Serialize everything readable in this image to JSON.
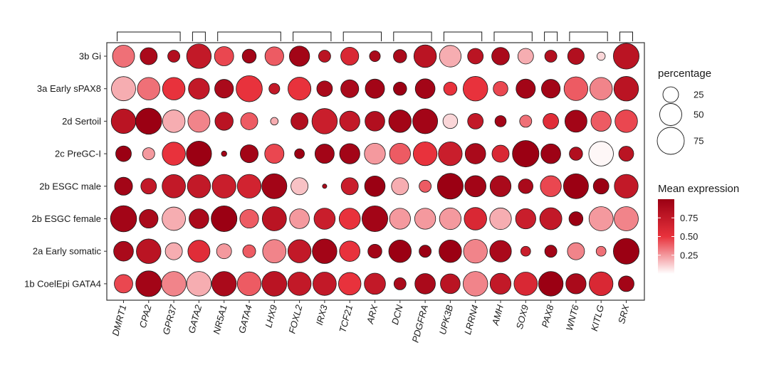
{
  "chart_data": {
    "type": "dotplot",
    "title": "",
    "xlabel": "",
    "ylabel": "",
    "genes": [
      "DMRT1",
      "CPA2",
      "GPR37",
      "GATA2",
      "NR5A1",
      "GATA4",
      "LHX9",
      "FOXL2",
      "IRX3",
      "TCF21",
      "ARX",
      "DCN",
      "PDGFRA",
      "UPK3B",
      "LRRN4",
      "AMH",
      "SOX9",
      "PAX8",
      "WNT6",
      "KITLG",
      "SRX"
    ],
    "groups": [
      "3b Gi",
      "3a Early sPAX8",
      "2d Sertoil",
      "2c PreGC-I",
      "2b ESGC male",
      "2b ESGC female",
      "2a Early somatic",
      "1b CoelEpi GATA4"
    ],
    "gene_clusters": [
      {
        "start": "DMRT1",
        "end": "GPR37"
      },
      {
        "start": "GATA2",
        "end": "GATA2"
      },
      {
        "start": "NR5A1",
        "end": "LHX9"
      },
      {
        "start": "FOXL2",
        "end": "IRX3"
      },
      {
        "start": "TCF21",
        "end": "ARX"
      },
      {
        "start": "DCN",
        "end": "PDGFRA"
      },
      {
        "start": "UPK3B",
        "end": "LRRN4"
      },
      {
        "start": "AMH",
        "end": "SOX9"
      },
      {
        "start": "PAX8",
        "end": "PAX8"
      },
      {
        "start": "WNT6",
        "end": "KITLG"
      },
      {
        "start": "SRX",
        "end": "SRX"
      }
    ],
    "percentage": [
      [
        50,
        30,
        15,
        62,
        38,
        20,
        36,
        42,
        15,
        33,
        12,
        18,
        52,
        48,
        25,
        32,
        25,
        15,
        28,
        7,
        68
      ],
      [
        60,
        52,
        52,
        45,
        36,
        70,
        12,
        54,
        25,
        33,
        38,
        18,
        40,
        18,
        62,
        22,
        38,
        36,
        58,
        52,
        62
      ],
      [
        62,
        70,
        52,
        50,
        34,
        30,
        6,
        30,
        66,
        42,
        40,
        52,
        64,
        22,
        25,
        13,
        15,
        25,
        50,
        42,
        52
      ],
      [
        25,
        15,
        55,
        65,
        3,
        33,
        38,
        10,
        38,
        42,
        45,
        45,
        58,
        58,
        43,
        30,
        72,
        40,
        18,
        62,
        23
      ],
      [
        33,
        25,
        56,
        55,
        58,
        58,
        64,
        30,
        2,
        30,
        43,
        30,
        15,
        68,
        46,
        45,
        22,
        45,
        64,
        25,
        58
      ],
      [
        70,
        36,
        56,
        40,
        68,
        36,
        60,
        40,
        46,
        46,
        68,
        45,
        45,
        48,
        52,
        48,
        42,
        50,
        20,
        60,
        60
      ],
      [
        40,
        62,
        30,
        50,
        23,
        17,
        56,
        55,
        62,
        43,
        20,
        52,
        15,
        52,
        58,
        48,
        10,
        15,
        30,
        10,
        68
      ],
      [
        35,
        68,
        62,
        62,
        62,
        58,
        63,
        56,
        56,
        52,
        46,
        15,
        43,
        40,
        62,
        45,
        56,
        62,
        42,
        58,
        25
      ]
    ],
    "mean_expression": [
      [
        0.35,
        0.9,
        0.85,
        0.75,
        0.45,
        0.95,
        0.4,
        0.95,
        0.8,
        0.6,
        0.9,
        0.9,
        0.8,
        0.2,
        0.8,
        0.9,
        0.2,
        0.85,
        0.85,
        0.1,
        0.8
      ],
      [
        0.2,
        0.35,
        0.5,
        0.75,
        0.9,
        0.5,
        0.75,
        0.5,
        0.9,
        0.9,
        0.95,
        1.0,
        0.95,
        0.5,
        0.5,
        0.45,
        0.95,
        0.95,
        0.4,
        0.3,
        0.8
      ],
      [
        0.8,
        1.0,
        0.2,
        0.3,
        0.8,
        0.4,
        0.2,
        0.85,
        0.7,
        0.75,
        0.85,
        0.95,
        0.95,
        0.1,
        0.75,
        0.95,
        0.35,
        0.55,
        0.95,
        0.4,
        0.45
      ],
      [
        1.0,
        0.25,
        0.5,
        1.0,
        0.95,
        0.95,
        0.45,
        1.0,
        0.95,
        0.95,
        0.25,
        0.4,
        0.5,
        0.7,
        0.9,
        0.6,
        1.0,
        0.98,
        0.85,
        0.02,
        0.8
      ],
      [
        0.95,
        0.75,
        0.75,
        0.75,
        0.7,
        0.65,
        0.95,
        0.15,
        0.9,
        0.7,
        1.0,
        0.2,
        0.4,
        1.0,
        0.95,
        0.9,
        0.9,
        0.45,
        1.0,
        1.0,
        0.75
      ],
      [
        0.95,
        0.9,
        0.2,
        0.9,
        1.0,
        0.4,
        0.8,
        0.25,
        0.7,
        0.5,
        0.95,
        0.25,
        0.25,
        0.25,
        0.6,
        0.2,
        0.7,
        0.75,
        1.0,
        0.25,
        0.3
      ],
      [
        0.9,
        0.8,
        0.2,
        0.55,
        0.25,
        0.4,
        0.3,
        0.75,
        0.95,
        0.5,
        0.95,
        1.0,
        1.0,
        1.0,
        0.3,
        0.9,
        0.7,
        0.95,
        0.3,
        0.35,
        1.0
      ],
      [
        0.45,
        0.95,
        0.3,
        0.2,
        0.9,
        0.4,
        0.8,
        0.75,
        0.75,
        0.5,
        0.75,
        0.9,
        0.9,
        0.8,
        0.3,
        0.75,
        0.6,
        1.0,
        0.9,
        0.6,
        0.95
      ]
    ],
    "legend_size": {
      "title": "percentage",
      "breaks": [
        25,
        50,
        75
      ]
    },
    "legend_color": {
      "title": "Mean expression",
      "breaks": [
        0.25,
        0.5,
        0.75
      ],
      "labels": [
        "0.25",
        "0.50",
        "0.75"
      ],
      "low": "#ffffff",
      "high": "#9b0013",
      "mid": "#e8323c",
      "range": [
        0,
        1
      ]
    }
  }
}
